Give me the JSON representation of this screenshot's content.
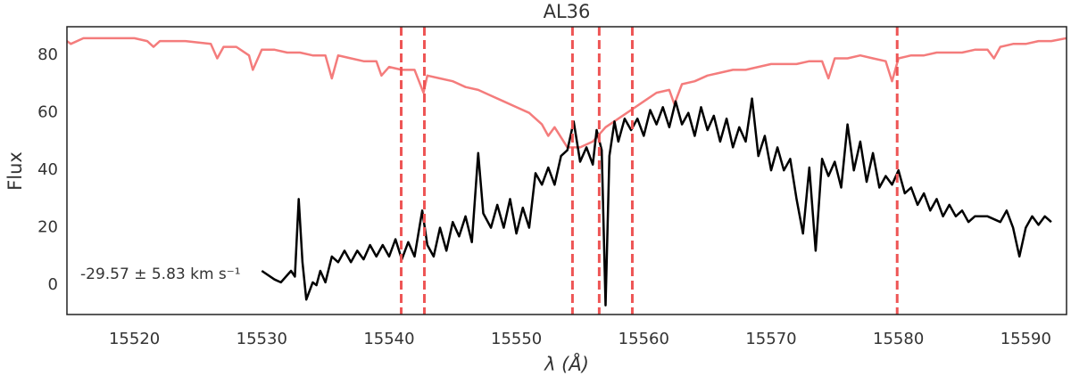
{
  "chart_data": {
    "type": "line",
    "title": "AL36",
    "xlabel": "λ (Å)",
    "ylabel": "Flux",
    "annotation": "-29.57 ± 5.83 km s⁻¹",
    "xlim": [
      15514.7,
      15593.2
    ],
    "ylim": [
      -10.2,
      90
    ],
    "xticks": [
      15520,
      15530,
      15540,
      15550,
      15560,
      15570,
      15580,
      15590
    ],
    "yticks": [
      0,
      20,
      40,
      60,
      80
    ],
    "grid": false,
    "vlines": [
      15540.95,
      15542.77,
      15554.4,
      15556.5,
      15559.1,
      15579.9
    ],
    "vline_color": "#ee5555",
    "series": [
      {
        "color": "#f47c7c",
        "x": [
          15514.7,
          15515,
          15516,
          15518,
          15520,
          15521,
          15521.5,
          15522,
          15524,
          15526,
          15526.5,
          15527,
          15528,
          15529,
          15529.3,
          15530,
          15531,
          15532,
          15533,
          15534,
          15535,
          15535.5,
          15536,
          15537,
          15538,
          15539,
          15539.4,
          15540,
          15541,
          15542,
          15542.7,
          15543,
          15544,
          15545,
          15546,
          15547,
          15548,
          15549,
          15550,
          15551,
          15552,
          15552.5,
          15553,
          15554,
          15555,
          15556,
          15557,
          15558,
          15559,
          15560,
          15561,
          15562,
          15562.4,
          15563,
          15564,
          15565,
          15566,
          15567,
          15568,
          15569,
          15570,
          15571,
          15572,
          15573,
          15574,
          15574.5,
          15575,
          15576,
          15577,
          15578,
          15579,
          15579.5,
          15580,
          15581,
          15582,
          15583,
          15584,
          15585,
          15586,
          15587,
          15587.5,
          15588,
          15589,
          15590,
          15591,
          15592,
          15593.2
        ],
        "values": [
          85,
          84,
          86,
          86,
          86,
          85,
          83,
          85,
          85,
          84,
          79,
          83,
          83,
          80,
          75,
          82,
          82,
          81,
          81,
          80,
          80,
          72,
          80,
          79,
          78,
          78,
          73,
          76,
          75,
          75,
          67,
          73,
          72,
          71,
          69,
          68,
          66,
          64,
          62,
          60,
          56,
          52,
          55,
          48,
          48,
          50,
          55,
          58,
          61,
          64,
          67,
          68,
          63,
          70,
          71,
          73,
          74,
          75,
          75,
          76,
          77,
          77,
          77,
          78,
          78,
          72,
          79,
          79,
          80,
          79,
          78,
          71,
          79,
          80,
          80,
          81,
          81,
          81,
          82,
          82,
          79,
          83,
          84,
          84,
          85,
          85,
          86
        ]
      },
      {
        "color": "#000000",
        "x": [
          15530,
          15531,
          15531.5,
          15532.3,
          15532.6,
          15532.9,
          15533.2,
          15533.5,
          15534,
          15534.3,
          15534.6,
          15535,
          15535.5,
          15536,
          15536.5,
          15537,
          15537.5,
          15538,
          15538.5,
          15539,
          15539.5,
          15540,
          15540.5,
          15541,
          15541.5,
          15542,
          15542.6,
          15543,
          15543.5,
          15544,
          15544.5,
          15545,
          15545.5,
          15546,
          15546.5,
          15547,
          15547.4,
          15548,
          15548.5,
          15549,
          15549.5,
          15550,
          15550.5,
          15551,
          15551.5,
          15552,
          15552.5,
          15553,
          15553.5,
          15554,
          15554.5,
          15555,
          15555.5,
          15556,
          15556.3,
          15556.7,
          15557,
          15557.3,
          15557.7,
          15558,
          15558.5,
          15559,
          15559.5,
          15560,
          15560.5,
          15561,
          15561.5,
          15562,
          15562.5,
          15563,
          15563.5,
          15564,
          15564.5,
          15565,
          15565.5,
          15566,
          15566.5,
          15567,
          15567.5,
          15568,
          15568.5,
          15569,
          15569.5,
          15570,
          15570.5,
          15571,
          15571.5,
          15572,
          15572.5,
          15573,
          15573.5,
          15574,
          15574.5,
          15575,
          15575.5,
          15576,
          15576.5,
          15577,
          15577.5,
          15578,
          15578.5,
          15579,
          15579.5,
          15580,
          15580.5,
          15581,
          15581.5,
          15582,
          15582.5,
          15583,
          15583.5,
          15584,
          15584.5,
          15585,
          15585.5,
          15586,
          15587,
          15588,
          15588.5,
          15589,
          15589.5,
          15590,
          15590.5,
          15591,
          15591.5,
          15592
        ],
        "values": [
          5,
          2,
          1,
          5,
          3,
          30,
          8,
          -5,
          1,
          0,
          5,
          1,
          10,
          8,
          12,
          8,
          12,
          9,
          14,
          10,
          14,
          10,
          16,
          9,
          15,
          10,
          26,
          14,
          10,
          20,
          12,
          22,
          17,
          24,
          15,
          46,
          25,
          20,
          28,
          20,
          30,
          18,
          27,
          20,
          39,
          35,
          41,
          35,
          45,
          47,
          57,
          43,
          48,
          42,
          54,
          47,
          -7,
          45,
          57,
          50,
          58,
          54,
          58,
          52,
          61,
          56,
          62,
          55,
          64,
          56,
          60,
          52,
          62,
          54,
          59,
          50,
          58,
          48,
          55,
          50,
          65,
          45,
          52,
          40,
          48,
          40,
          44,
          30,
          18,
          41,
          12,
          44,
          38,
          43,
          34,
          56,
          40,
          50,
          36,
          46,
          34,
          38,
          35,
          40,
          32,
          34,
          28,
          32,
          26,
          30,
          24,
          28,
          24,
          26,
          22,
          24,
          24,
          22,
          26,
          20,
          10,
          20,
          24,
          21,
          24,
          22
        ]
      }
    ]
  }
}
